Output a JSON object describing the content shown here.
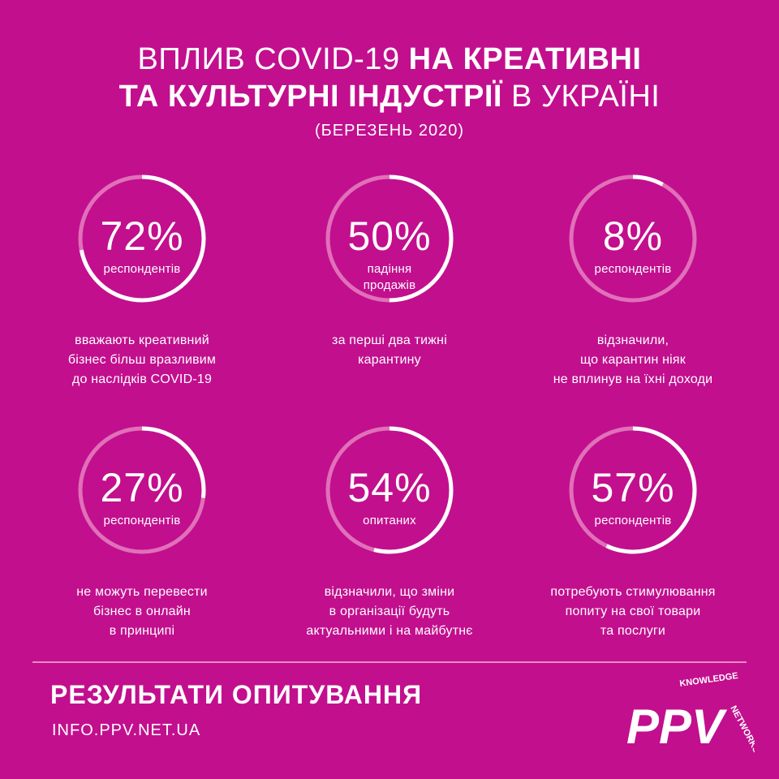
{
  "title": {
    "line1_light": "ВПЛИВ COVID-19 ",
    "line1_bold": "НА КРЕАТИВНІ",
    "line2_bold": "ТА КУЛЬТУРНІ ІНДУСТРІЇ",
    "line2_light": " В УКРАЇНІ",
    "subtitle": "(БЕРЕЗЕНЬ 2020)"
  },
  "colors": {
    "background": "#c20f8e",
    "ring_track": "#e070b9",
    "ring_fill": "#ffffff"
  },
  "stats": [
    {
      "value": "72%",
      "fraction": 0.72,
      "unit": "респондентів",
      "desc": [
        "вважають креативний",
        "бізнес більш вразливим",
        "до наслідків COVID-19"
      ]
    },
    {
      "value": "50%",
      "fraction": 0.5,
      "unit": "падіння продажів",
      "desc": [
        "за перші два тижні",
        "карантину"
      ]
    },
    {
      "value": "8%",
      "fraction": 0.08,
      "unit": "респондентів",
      "desc": [
        "відзначили,",
        "що карантин ніяк",
        "не вплинув на їхні доходи"
      ]
    },
    {
      "value": "27%",
      "fraction": 0.27,
      "unit": "респондентів",
      "desc": [
        "не можуть перевести",
        "бізнес в онлайн",
        "в принципі"
      ]
    },
    {
      "value": "54%",
      "fraction": 0.54,
      "unit": "опитаних",
      "desc": [
        "відзначили, що зміни",
        "в організації будуть",
        "актуальними і на майбутнє"
      ]
    },
    {
      "value": "57%",
      "fraction": 0.57,
      "unit": "респондентів",
      "desc": [
        "потребують стимулювання",
        "попиту на свої товари",
        "та послуги"
      ]
    }
  ],
  "footer": {
    "title": "РЕЗУЛЬТАТИ ОПИТУВАННЯ",
    "url": "INFO.PPV.NET.UA"
  },
  "logo": {
    "mark": "PPV",
    "word_top": "KNOWLEDGE",
    "word_side": "NETWORKS"
  }
}
